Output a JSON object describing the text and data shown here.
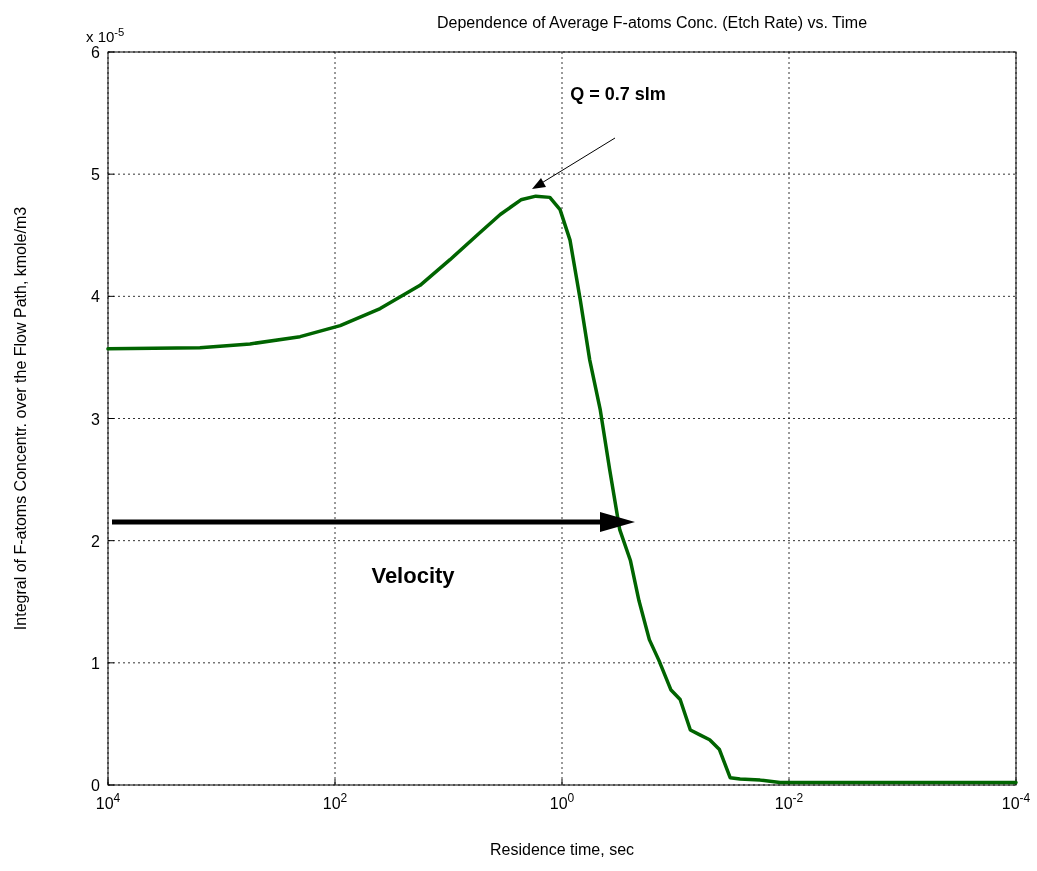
{
  "chart_data": {
    "type": "line",
    "title": "Dependence of Average F-atoms Conc. (Etch Rate) vs. Time",
    "xlabel": "Residence time, sec",
    "ylabel": "Integral of F-atoms Concentr. over the Flow Path, kmole/m3",
    "log": "x",
    "xlim": [
      10000,
      0.0001
    ],
    "ylim": [
      0,
      6
    ],
    "xticks": [
      {
        "value": 10000,
        "label": "10$^{4}$"
      },
      {
        "value": 100,
        "label": "10$^{2}$"
      },
      {
        "value": 1,
        "label": "10$^{0}$"
      },
      {
        "value": 0.01,
        "label": "10$^{-2}$"
      },
      {
        "value": 0.0001,
        "label": "10$^{-4}$"
      }
    ],
    "yticks": [
      0,
      1,
      2,
      3,
      4,
      5,
      6
    ],
    "grid": true,
    "line_style": "solid",
    "marker": "none",
    "annotations": [
      "x 10$^{-5}$",
      "Velocity",
      "Q = 0.7 slm"
    ],
    "series": [
      {
        "color": "#006400",
        "x": [
          10000,
          1549,
          561,
          203,
          90,
          40,
          17.8,
          9.7,
          5.3,
          3.5,
          2.3,
          1.7,
          1.28,
          1.04,
          0.85,
          0.69,
          0.57,
          0.46,
          0.38,
          0.31,
          0.25,
          0.21,
          0.17,
          0.14,
          0.11,
          0.091,
          0.074,
          0.061,
          0.05,
          0.041,
          0.033,
          0.027,
          0.018,
          0.012,
          0.0001
        ],
        "values": [
          3.57,
          3.58,
          3.61,
          3.67,
          3.76,
          3.9,
          4.09,
          4.3,
          4.52,
          4.67,
          4.79,
          4.82,
          4.81,
          4.71,
          4.46,
          3.97,
          3.48,
          3.07,
          2.58,
          2.09,
          1.84,
          1.51,
          1.19,
          1.02,
          0.78,
          0.7,
          0.45,
          0.41,
          0.37,
          0.29,
          0.06,
          0.05,
          0.04,
          0.02,
          0.02
        ]
      }
    ]
  }
}
